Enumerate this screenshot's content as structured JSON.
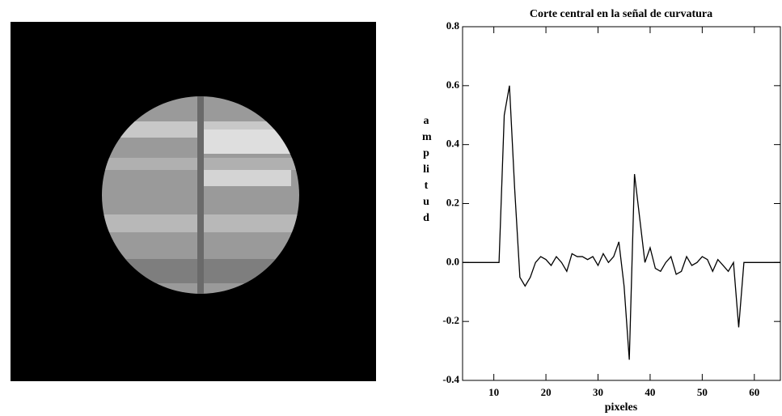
{
  "chart_data": {
    "type": "line",
    "title": "Corte central en la señal de curvatura",
    "x_label": "pixeles",
    "y_label": "amplitud",
    "x": [
      4,
      5,
      6,
      7,
      8,
      9,
      10,
      11,
      12,
      13,
      14,
      15,
      16,
      17,
      18,
      19,
      20,
      21,
      22,
      23,
      24,
      25,
      26,
      27,
      28,
      29,
      30,
      31,
      32,
      33,
      34,
      35,
      36,
      37,
      38,
      39,
      40,
      41,
      42,
      43,
      44,
      45,
      46,
      47,
      48,
      49,
      50,
      51,
      52,
      53,
      54,
      55,
      56,
      57,
      58,
      59,
      60,
      61,
      62,
      63,
      64,
      65
    ],
    "series": [
      {
        "color": "#000000",
        "values": [
          0,
          0,
          0,
          0,
          0,
          0,
          0,
          0,
          0.5,
          0.6,
          0.25,
          -0.05,
          -0.08,
          -0.05,
          0.0,
          0.02,
          0.01,
          -0.01,
          0.02,
          0.0,
          -0.03,
          0.03,
          0.02,
          0.02,
          0.01,
          0.02,
          -0.01,
          0.03,
          0.0,
          0.02,
          0.07,
          -0.08,
          -0.33,
          0.3,
          0.15,
          0.0,
          0.05,
          -0.02,
          -0.03,
          0.0,
          0.02,
          -0.04,
          -0.03,
          0.02,
          -0.01,
          0.0,
          0.02,
          0.01,
          -0.03,
          0.01,
          -0.01,
          -0.03,
          0.0,
          -0.22,
          0.0,
          0,
          0,
          0,
          0,
          0,
          0,
          0
        ]
      }
    ],
    "xlim": [
      4,
      65
    ],
    "xticks": [
      10,
      20,
      30,
      40,
      50,
      60
    ],
    "ylim": [
      -0.4,
      0.8
    ],
    "yticks": [
      -0.4,
      -0.2,
      {
        "value": 0,
        "label": "0.0"
      },
      0.2,
      0.4,
      0.6,
      0.8
    ]
  }
}
